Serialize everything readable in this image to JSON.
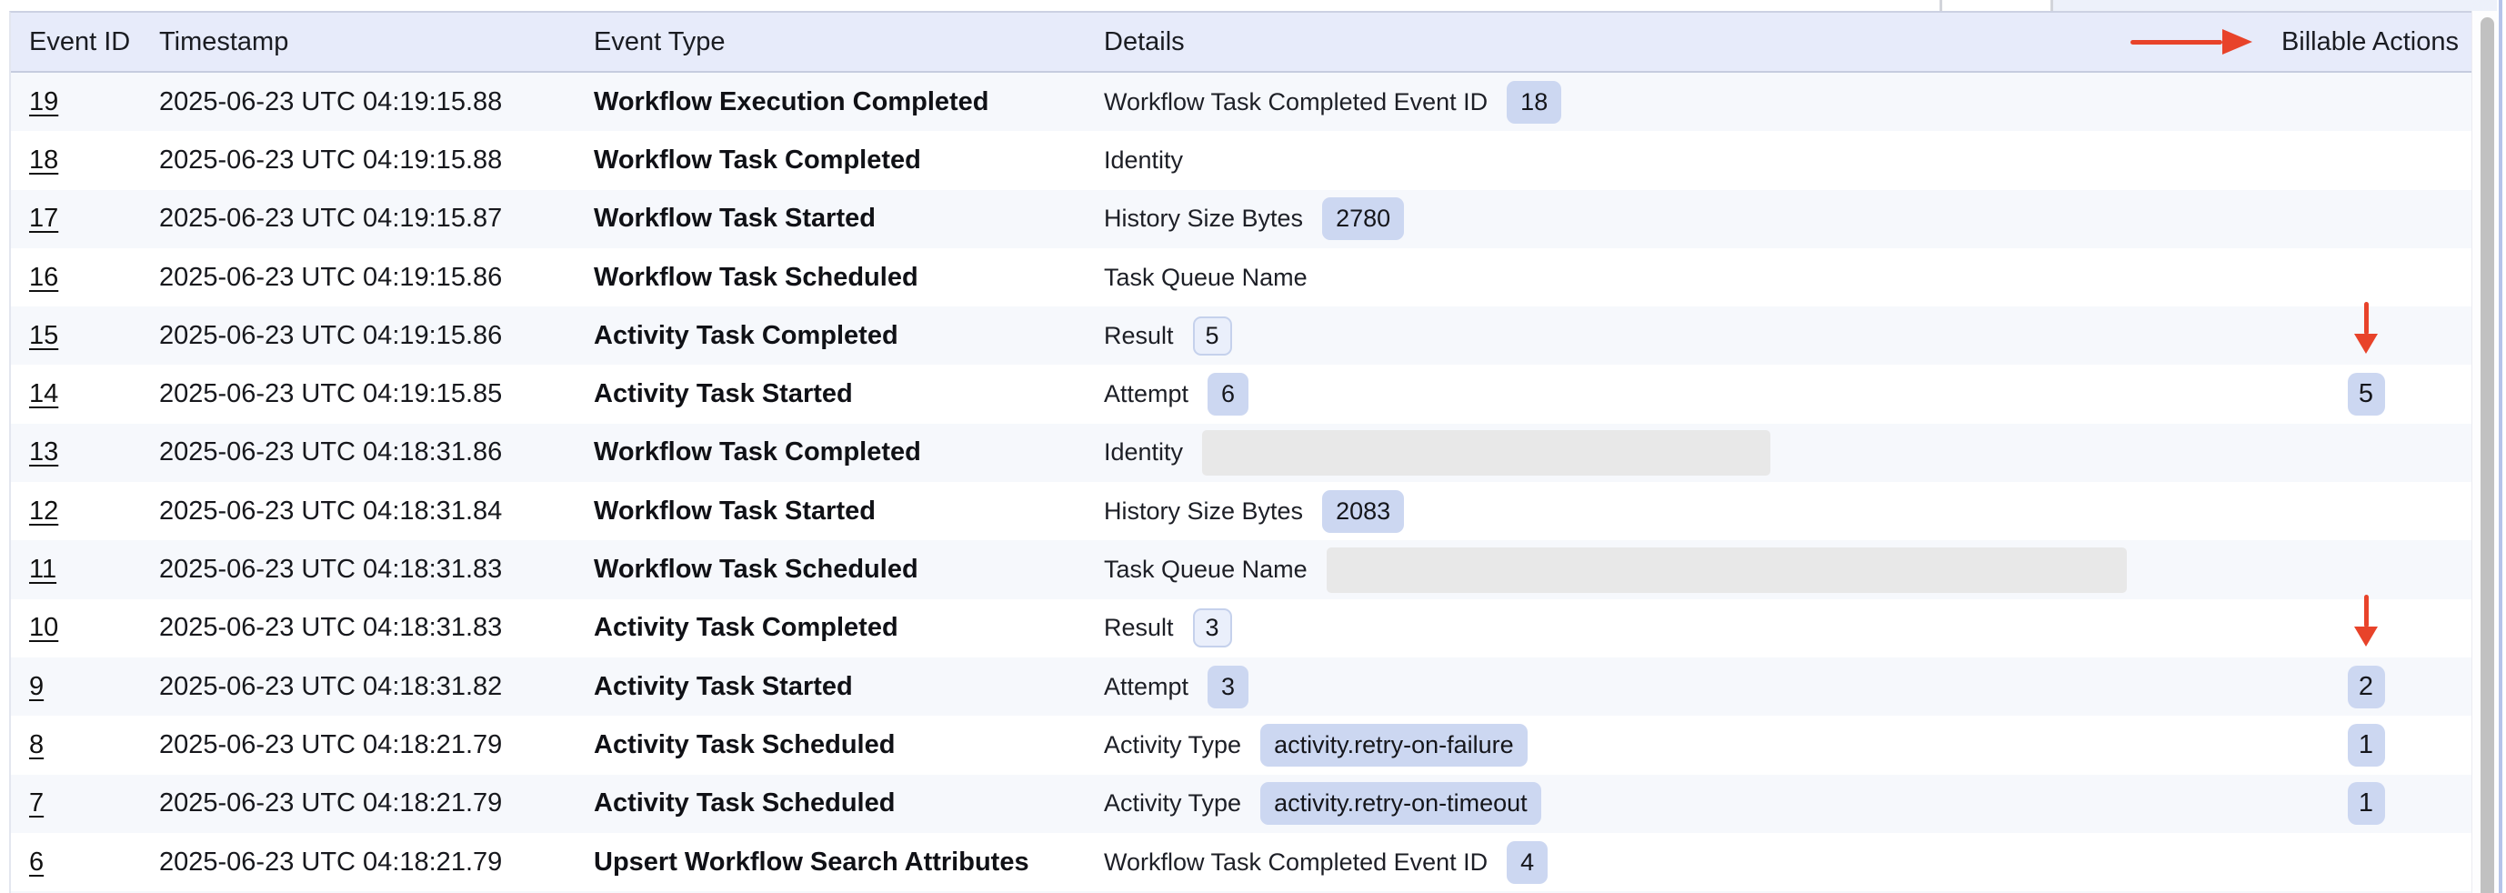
{
  "header": {
    "columns": [
      "Event ID",
      "Timestamp",
      "Event Type",
      "Details",
      "Billable Actions"
    ],
    "billable_arrow": true
  },
  "rows": [
    {
      "event_id": "19",
      "timestamp": "2025-06-23 UTC 04:19:15.88",
      "event_type": "Workflow Execution Completed",
      "detail": {
        "label": "Workflow Task Completed Event ID",
        "value": "18",
        "style": "solid"
      },
      "billable": "",
      "arrow": false
    },
    {
      "event_id": "18",
      "timestamp": "2025-06-23 UTC 04:19:15.88",
      "event_type": "Workflow Task Completed",
      "detail": {
        "label": "Identity",
        "value": "",
        "style": "none"
      },
      "billable": "",
      "arrow": false
    },
    {
      "event_id": "17",
      "timestamp": "2025-06-23 UTC 04:19:15.87",
      "event_type": "Workflow Task Started",
      "detail": {
        "label": "History Size Bytes",
        "value": "2780",
        "style": "solid"
      },
      "billable": "",
      "arrow": false
    },
    {
      "event_id": "16",
      "timestamp": "2025-06-23 UTC 04:19:15.86",
      "event_type": "Workflow Task Scheduled",
      "detail": {
        "label": "Task Queue Name",
        "value": "",
        "style": "none"
      },
      "billable": "",
      "arrow": false
    },
    {
      "event_id": "15",
      "timestamp": "2025-06-23 UTC 04:19:15.86",
      "event_type": "Activity Task Completed",
      "detail": {
        "label": "Result",
        "value": "5",
        "style": "outline"
      },
      "billable": "",
      "arrow": true
    },
    {
      "event_id": "14",
      "timestamp": "2025-06-23 UTC 04:19:15.85",
      "event_type": "Activity Task Started",
      "detail": {
        "label": "Attempt",
        "value": "6",
        "style": "solid"
      },
      "billable": "5",
      "arrow": false
    },
    {
      "event_id": "13",
      "timestamp": "2025-06-23 UTC 04:18:31.86",
      "event_type": "Workflow Task Completed",
      "detail": {
        "label": "Identity",
        "value": "",
        "style": "redacted",
        "redacted_width": 625
      },
      "billable": "",
      "arrow": false
    },
    {
      "event_id": "12",
      "timestamp": "2025-06-23 UTC 04:18:31.84",
      "event_type": "Workflow Task Started",
      "detail": {
        "label": "History Size Bytes",
        "value": "2083",
        "style": "solid"
      },
      "billable": "",
      "arrow": false
    },
    {
      "event_id": "11",
      "timestamp": "2025-06-23 UTC 04:18:31.83",
      "event_type": "Workflow Task Scheduled",
      "detail": {
        "label": "Task Queue Name",
        "value": "",
        "style": "redacted",
        "redacted_width": 880
      },
      "billable": "",
      "arrow": false
    },
    {
      "event_id": "10",
      "timestamp": "2025-06-23 UTC 04:18:31.83",
      "event_type": "Activity Task Completed",
      "detail": {
        "label": "Result",
        "value": "3",
        "style": "outline"
      },
      "billable": "",
      "arrow": true
    },
    {
      "event_id": "9",
      "timestamp": "2025-06-23 UTC 04:18:31.82",
      "event_type": "Activity Task Started",
      "detail": {
        "label": "Attempt",
        "value": "3",
        "style": "solid"
      },
      "billable": "2",
      "arrow": false
    },
    {
      "event_id": "8",
      "timestamp": "2025-06-23 UTC 04:18:21.79",
      "event_type": "Activity Task Scheduled",
      "detail": {
        "label": "Activity Type",
        "value": "activity.retry-on-failure",
        "style": "solid"
      },
      "billable": "1",
      "arrow": false
    },
    {
      "event_id": "7",
      "timestamp": "2025-06-23 UTC 04:18:21.79",
      "event_type": "Activity Task Scheduled",
      "detail": {
        "label": "Activity Type",
        "value": "activity.retry-on-timeout",
        "style": "solid"
      },
      "billable": "1",
      "arrow": false
    },
    {
      "event_id": "6",
      "timestamp": "2025-06-23 UTC 04:18:21.79",
      "event_type": "Upsert Workflow Search Attributes",
      "detail": {
        "label": "Workflow Task Completed Event ID",
        "value": "4",
        "style": "solid"
      },
      "billable": "",
      "arrow": false
    }
  ],
  "colors": {
    "annotation_arrow": "#e8432a",
    "badge_solid": "#ccd7f1",
    "badge_outline_border": "#c5d1ec",
    "header_bg": "#e7ebfa",
    "stripe_bg": "#f6f8fc",
    "redacted_box": "#e8e8e8"
  }
}
